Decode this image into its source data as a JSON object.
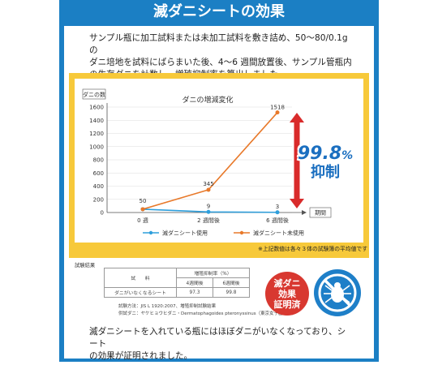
{
  "header": {
    "title": "滅ダニシートの効果"
  },
  "intro": {
    "line1": "サンプル瓶に加工試料または未加工試料を敷き詰め、50〜80/0.1g の",
    "line2": "ダニ培地を試料にばらまいた後、4〜6 週間放置後、サンプル管瓶内",
    "line3": "の生存ダニを計数し、増殖抑制率を算出しました。"
  },
  "chart_data": {
    "type": "line",
    "title": "ダニの増減変化",
    "ylabel": "ダニの数",
    "xlabel": "期間",
    "categories": [
      "0 週",
      "2 週間後",
      "6 週間後"
    ],
    "ylim": [
      0,
      1600
    ],
    "yticks": [
      "0",
      "200",
      "400",
      "600",
      "800",
      "1000",
      "1200",
      "1400",
      "1600"
    ],
    "series": [
      {
        "name": "滅ダニシート使用",
        "color": "#2e9fdc",
        "values": [
          50,
          9,
          3
        ]
      },
      {
        "name": "滅ダニシート未使用",
        "color": "#e8792a",
        "values": [
          50,
          345,
          1518
        ]
      }
    ],
    "data_labels": [
      "50",
      "345",
      "1518",
      "9",
      "3"
    ],
    "legend_position": "bottom"
  },
  "callout": {
    "big": "99.8",
    "small": "%",
    "label": "抑制"
  },
  "note": "※上記数値は各々３体の試験簿の平均値です",
  "results": {
    "label": "試験結果",
    "header_col1": "試　　料",
    "header_group": "増殖抑制率（%）",
    "sub1": "4週間後",
    "sub2": "6週間後",
    "row_label": "ダニがいなくなるシート",
    "row_v1": "97.3",
    "row_v2": "99.8",
    "foot1": "試験方法：JIS L 1920:2007、増殖抑制試験結果",
    "foot2": "供試ダニ：ヤケヒョウヒダニ・Dermatophagoides pteronyssinus（東京女子医大産）"
  },
  "badge": {
    "line1": "滅ダニ",
    "line2": "効果",
    "line3": "証明済"
  },
  "outro": {
    "line1": "滅ダニシートを入れている瓶にはほぼダニがいなくなっており、シート",
    "line2": "の効果が証明されました。"
  },
  "colors": {
    "frame": "#1b7fc4",
    "yellow": "#f7c93a",
    "arrow": "#d92b2b",
    "badge": "#d83830"
  }
}
